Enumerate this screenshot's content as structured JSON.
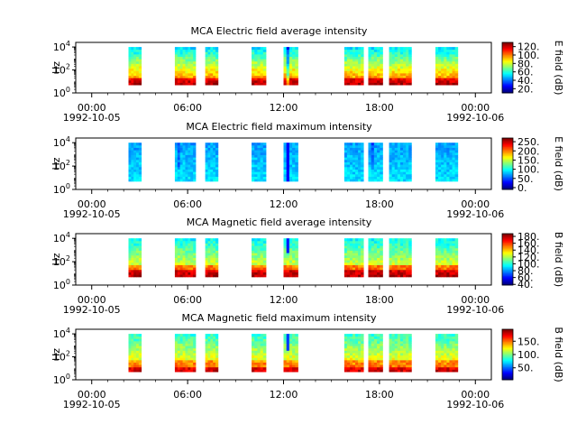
{
  "chart_data": [
    {
      "type": "heatmap",
      "title": "MCA  Electric field average intensity",
      "ylabel": "Hz",
      "colorbar_label": "E field (dB)",
      "colorbar_ticks": [
        "120.",
        "100.",
        "80.",
        "60.",
        "40.",
        "20."
      ],
      "colorbar_values": [
        120,
        100,
        80,
        60,
        40,
        20
      ],
      "colorbar_range": [
        10,
        130
      ],
      "y_scale": "log",
      "y_ticks": [
        "0",
        "2",
        "4"
      ],
      "ylim_exponent": [
        0,
        4.4
      ],
      "data_ylim_exponent": [
        0.7,
        4.0
      ],
      "x_ticks": [
        "00:00",
        "06:00",
        "12:00",
        "18:00",
        "00:00"
      ],
      "x_tick_dates": [
        "1992-10-05",
        "",
        "",
        "",
        "1992-10-06"
      ],
      "xlim_hours": [
        -1,
        25
      ],
      "segments": [
        [
          2.3,
          3.1
        ],
        [
          5.2,
          6.5
        ],
        [
          7.1,
          7.9
        ],
        [
          10.0,
          10.9
        ],
        [
          12.0,
          12.9
        ],
        [
          15.8,
          17.0
        ],
        [
          17.3,
          18.2
        ],
        [
          18.6,
          20.0
        ],
        [
          21.5,
          22.9
        ]
      ],
      "profile": "e_avg"
    },
    {
      "type": "heatmap",
      "title": "MCA  Electric field maximum intensity",
      "ylabel": "Hz",
      "colorbar_label": "E field (dB)",
      "colorbar_ticks": [
        "250.",
        "200.",
        "150.",
        "100.",
        "50.",
        "0."
      ],
      "colorbar_values": [
        250,
        200,
        150,
        100,
        50,
        0
      ],
      "colorbar_range": [
        -10,
        270
      ],
      "y_scale": "log",
      "y_ticks": [
        "0",
        "2",
        "4"
      ],
      "ylim_exponent": [
        0,
        4.4
      ],
      "data_ylim_exponent": [
        0.7,
        4.0
      ],
      "x_ticks": [
        "00:00",
        "06:00",
        "12:00",
        "18:00",
        "00:00"
      ],
      "x_tick_dates": [
        "1992-10-05",
        "",
        "",
        "",
        "1992-10-06"
      ],
      "xlim_hours": [
        -1,
        25
      ],
      "segments": [
        [
          2.3,
          3.1
        ],
        [
          5.2,
          6.5
        ],
        [
          7.1,
          7.9
        ],
        [
          10.0,
          10.9
        ],
        [
          12.0,
          12.9
        ],
        [
          15.8,
          17.0
        ],
        [
          17.3,
          18.2
        ],
        [
          18.6,
          20.0
        ],
        [
          21.5,
          22.9
        ]
      ],
      "profile": "e_max"
    },
    {
      "type": "heatmap",
      "title": "MCA  Magnetic field average intensity",
      "ylabel": "Hz",
      "colorbar_label": "B field (dB)",
      "colorbar_ticks": [
        "180.",
        "160.",
        "140.",
        "120.",
        "100.",
        "80.",
        "60.",
        "40."
      ],
      "colorbar_values": [
        180,
        160,
        140,
        120,
        100,
        80,
        60,
        40
      ],
      "colorbar_range": [
        38,
        188
      ],
      "y_scale": "log",
      "y_ticks": [
        "0",
        "2",
        "4"
      ],
      "ylim_exponent": [
        0,
        4.4
      ],
      "data_ylim_exponent": [
        0.7,
        4.0
      ],
      "x_ticks": [
        "00:00",
        "06:00",
        "12:00",
        "18:00",
        "00:00"
      ],
      "x_tick_dates": [
        "1992-10-05",
        "",
        "",
        "",
        "1992-10-06"
      ],
      "xlim_hours": [
        -1,
        25
      ],
      "segments": [
        [
          2.3,
          3.1
        ],
        [
          5.2,
          6.5
        ],
        [
          7.1,
          7.9
        ],
        [
          10.0,
          10.9
        ],
        [
          12.0,
          12.9
        ],
        [
          15.8,
          17.0
        ],
        [
          17.3,
          18.2
        ],
        [
          18.6,
          20.0
        ],
        [
          21.5,
          22.9
        ]
      ],
      "profile": "b_avg"
    },
    {
      "type": "heatmap",
      "title": "MCA  Magnetic field maximum intensity",
      "ylabel": "Hz",
      "colorbar_label": "B field (dB)",
      "colorbar_ticks": [
        "150.",
        "100.",
        "50."
      ],
      "colorbar_values": [
        150,
        100,
        50
      ],
      "colorbar_range": [
        5,
        195
      ],
      "y_scale": "log",
      "y_ticks": [
        "0",
        "2",
        "4"
      ],
      "ylim_exponent": [
        0,
        4.4
      ],
      "data_ylim_exponent": [
        0.7,
        4.0
      ],
      "x_ticks": [
        "00:00",
        "06:00",
        "12:00",
        "18:00",
        "00:00"
      ],
      "x_tick_dates": [
        "1992-10-05",
        "",
        "",
        "",
        "1992-10-06"
      ],
      "xlim_hours": [
        -1,
        25
      ],
      "segments": [
        [
          2.3,
          3.1
        ],
        [
          5.2,
          6.5
        ],
        [
          7.1,
          7.9
        ],
        [
          10.0,
          10.9
        ],
        [
          12.0,
          12.9
        ],
        [
          15.8,
          17.0
        ],
        [
          17.3,
          18.2
        ],
        [
          18.6,
          20.0
        ],
        [
          21.5,
          22.9
        ]
      ],
      "profile": "b_max"
    }
  ]
}
